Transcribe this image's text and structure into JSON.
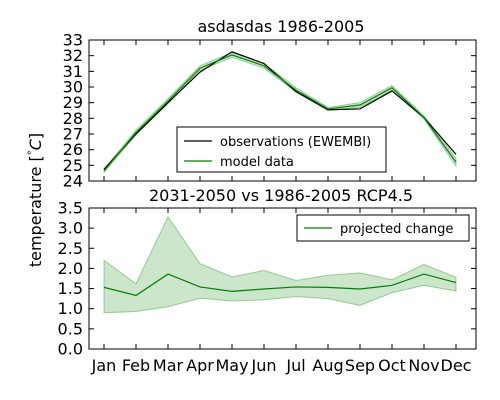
{
  "chart_data": [
    {
      "type": "line",
      "title": "asdasdas 1986-2005",
      "ylim": [
        24,
        33
      ],
      "yticks": [
        24,
        25,
        26,
        27,
        28,
        29,
        30,
        31,
        32,
        33
      ],
      "categories": [
        "Jan",
        "Feb",
        "Mar",
        "Apr",
        "May",
        "Jun",
        "Jul",
        "Aug",
        "Sep",
        "Oct",
        "Nov",
        "Dec"
      ],
      "series": [
        {
          "name": "observations (EWEMBI)",
          "color": "#000000",
          "values": [
            24.75,
            27.0,
            29.0,
            30.95,
            32.25,
            31.5,
            29.7,
            28.55,
            28.6,
            29.75,
            28.05,
            25.7
          ]
        },
        {
          "name": "model data",
          "color": "#008000",
          "values": [
            24.65,
            27.1,
            29.1,
            31.2,
            32.05,
            31.35,
            29.8,
            28.6,
            28.85,
            29.95,
            28.05,
            25.2
          ],
          "band_lower": [
            24.55,
            26.95,
            28.95,
            31.05,
            31.9,
            31.2,
            29.7,
            28.5,
            28.7,
            29.8,
            27.95,
            24.95
          ],
          "band_upper": [
            24.75,
            27.25,
            29.25,
            31.35,
            32.2,
            31.5,
            29.95,
            28.7,
            29.0,
            30.1,
            28.15,
            25.45
          ]
        }
      ],
      "legend_position": "lower-center",
      "grid": false
    },
    {
      "type": "area",
      "title": "2031-2050 vs 1986-2005 RCP4.5",
      "ylim": [
        0.0,
        3.5
      ],
      "yticks": [
        "0.0",
        "0.5",
        "1.0",
        "1.5",
        "2.0",
        "2.5",
        "3.0",
        "3.5"
      ],
      "categories": [
        "Jan",
        "Feb",
        "Mar",
        "Apr",
        "May",
        "Jun",
        "Jul",
        "Aug",
        "Sep",
        "Oct",
        "Nov",
        "Dec"
      ],
      "series": [
        {
          "name": "projected change",
          "color": "#008000",
          "values": [
            1.53,
            1.33,
            1.86,
            1.54,
            1.43,
            1.49,
            1.54,
            1.53,
            1.49,
            1.58,
            1.86,
            1.65
          ],
          "band_lower": [
            0.9,
            0.93,
            1.05,
            1.26,
            1.19,
            1.22,
            1.3,
            1.25,
            1.08,
            1.4,
            1.58,
            1.44
          ],
          "band_upper": [
            2.2,
            1.62,
            3.28,
            2.12,
            1.79,
            1.95,
            1.7,
            1.83,
            1.89,
            1.72,
            2.1,
            1.78
          ]
        }
      ],
      "legend_position": "upper-right",
      "grid": false
    }
  ],
  "shared_ylabel": "temperature [°C]",
  "ylabel_parts": {
    "prefix": "temperature [",
    "deg": "°",
    "unit": "C",
    "suffix": "]"
  }
}
